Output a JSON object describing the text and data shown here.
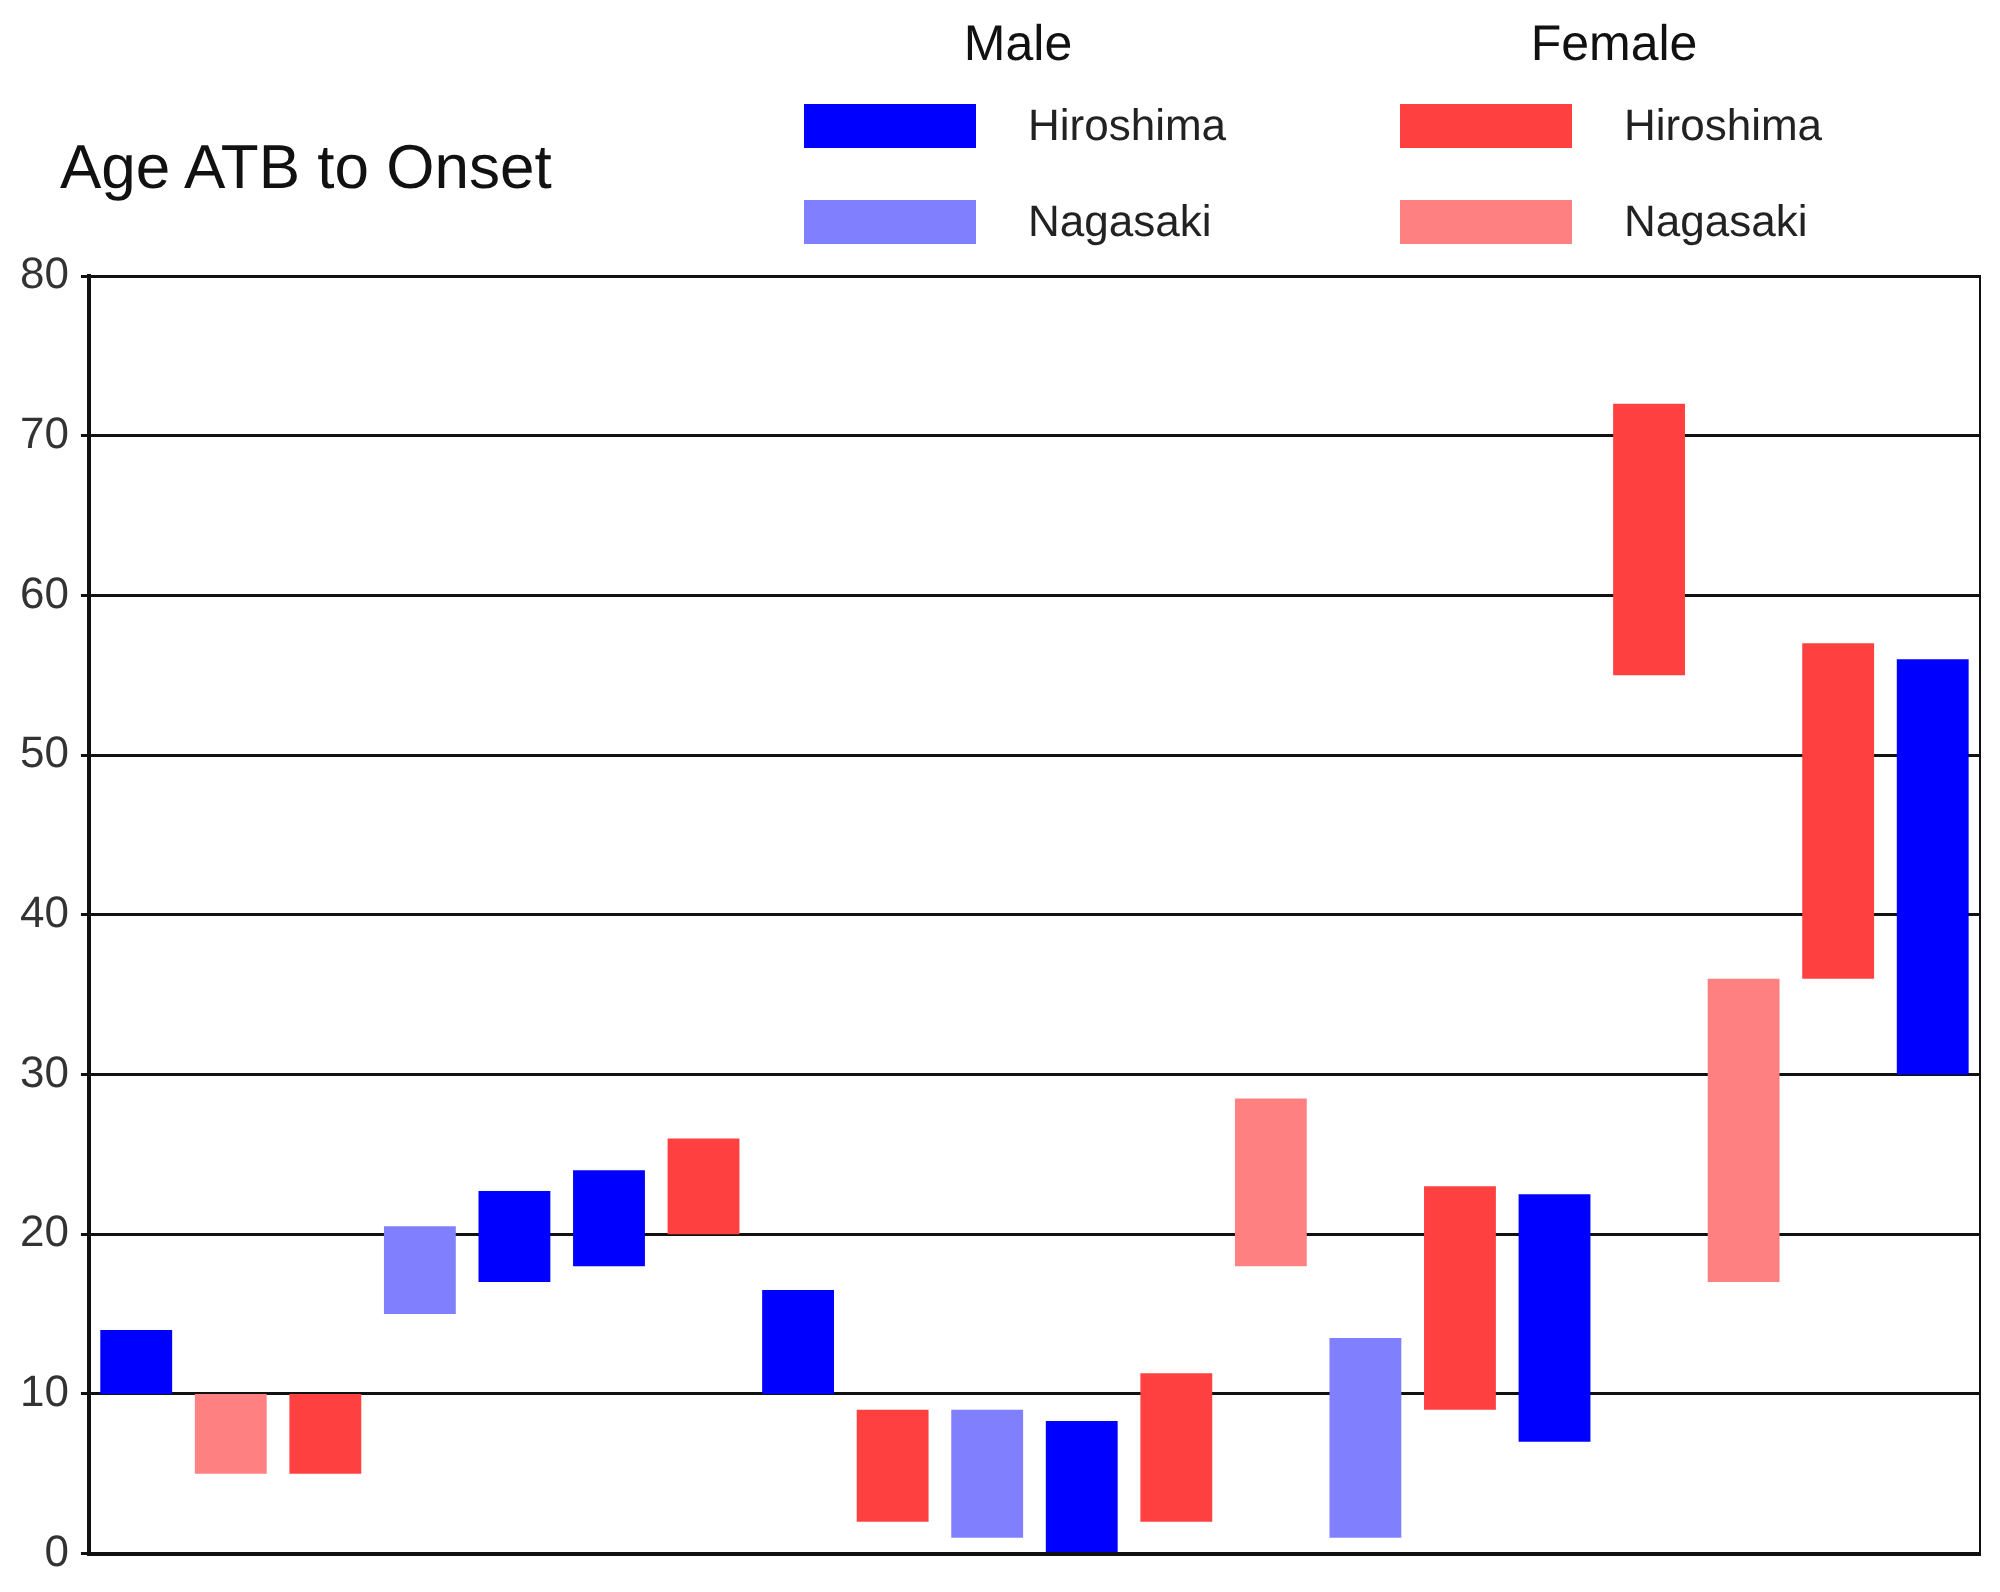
{
  "chart_data": {
    "type": "bar",
    "title": "Age ATB to Onset",
    "categories": [
      null,
      null,
      null,
      null,
      null,
      null,
      null,
      null,
      null,
      null,
      null,
      null,
      null,
      null,
      null,
      null,
      null,
      null,
      null,
      null
    ],
    "series": [
      {
        "name": "Hiroshima",
        "color": "#0000ff",
        "base": [
          10,
          null,
          null,
          null,
          17,
          18,
          null,
          10,
          null,
          null,
          0,
          null,
          null,
          null,
          null,
          7,
          null,
          null,
          null,
          30
        ],
        "values": [
          4,
          null,
          null,
          null,
          5.7,
          6,
          null,
          6.5,
          null,
          null,
          8.3,
          null,
          null,
          null,
          null,
          15.5,
          null,
          null,
          null,
          26
        ]
      },
      {
        "name": "Nagasaki",
        "color": "#8080ff",
        "base": [
          null,
          null,
          null,
          15,
          null,
          null,
          null,
          null,
          null,
          1,
          null,
          null,
          null,
          1,
          null,
          null,
          null,
          null,
          null,
          null
        ],
        "values": [
          null,
          null,
          null,
          5.5,
          null,
          null,
          null,
          null,
          null,
          8,
          null,
          null,
          null,
          12.5,
          null,
          null,
          null,
          null,
          null,
          null
        ]
      },
      {
        "name": "Hiroshima",
        "color": "#ff4040",
        "base": [
          null,
          null,
          5,
          null,
          null,
          null,
          20,
          null,
          2,
          null,
          null,
          2,
          null,
          null,
          9,
          null,
          55,
          null,
          36,
          null
        ],
        "values": [
          null,
          null,
          5,
          null,
          null,
          null,
          6,
          null,
          7,
          null,
          null,
          9.3,
          null,
          null,
          14,
          null,
          17,
          null,
          21,
          null
        ]
      },
      {
        "name": "Nagasaki",
        "color": "#ff8080",
        "base": [
          null,
          5,
          null,
          null,
          null,
          null,
          null,
          null,
          null,
          null,
          null,
          null,
          18,
          null,
          null,
          null,
          null,
          17,
          null,
          null
        ],
        "values": [
          null,
          5,
          null,
          null,
          null,
          null,
          null,
          null,
          null,
          null,
          null,
          null,
          10.5,
          null,
          null,
          null,
          null,
          19,
          null,
          null
        ]
      }
    ],
    "annotations": [
      "Male",
      "Female"
    ],
    "ylim": [
      0,
      80
    ],
    "yticks": [
      0,
      10,
      20,
      30,
      40,
      50,
      60,
      70,
      80
    ],
    "grid": "y",
    "legend": "top right"
  }
}
